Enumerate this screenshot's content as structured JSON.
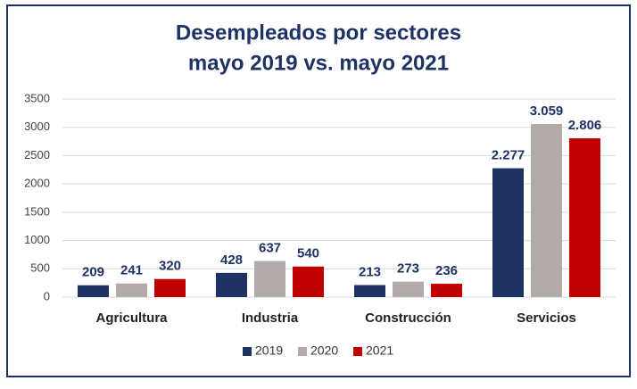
{
  "chart_data": {
    "type": "bar",
    "title": [
      "Desempleados por sectores",
      "mayo 2019 vs. mayo 2021"
    ],
    "categories": [
      "Agricultura",
      "Industria",
      "Construcción",
      "Servicios"
    ],
    "series": [
      {
        "name": "2019",
        "color": "#1f3264",
        "values": [
          209,
          428,
          213,
          2277
        ],
        "value_labels": [
          "209",
          "428",
          "213",
          "2.277"
        ]
      },
      {
        "name": "2020",
        "color": "#b2abaa",
        "values": [
          241,
          637,
          273,
          3059
        ],
        "value_labels": [
          "241",
          "637",
          "273",
          "3.059"
        ]
      },
      {
        "name": "2021",
        "color": "#c00000",
        "values": [
          320,
          540,
          236,
          2806
        ],
        "value_labels": [
          "320",
          "540",
          "236",
          "2.806"
        ]
      }
    ],
    "ylim": [
      0,
      3500
    ],
    "yticks": [
      0,
      500,
      1000,
      1500,
      2000,
      2500,
      3000,
      3500
    ],
    "grid": true,
    "legend": "bottom"
  }
}
